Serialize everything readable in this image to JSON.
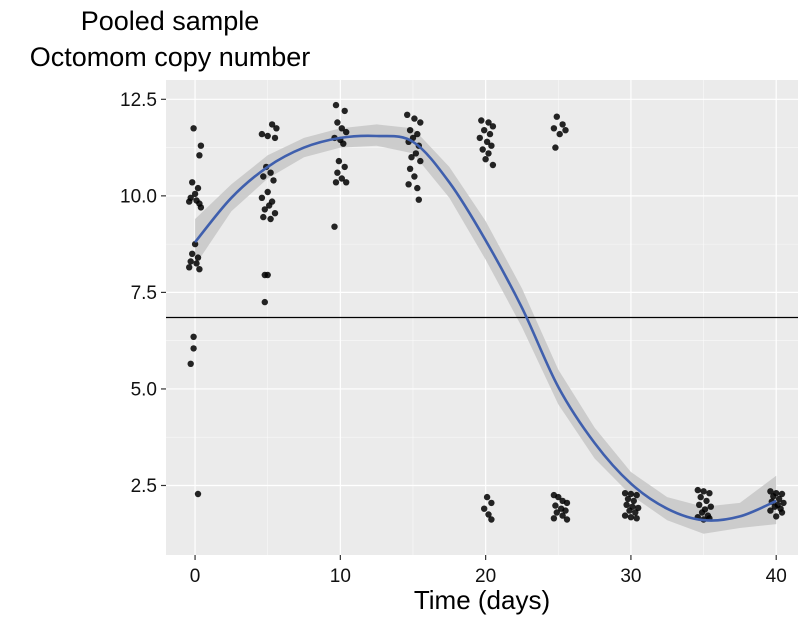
{
  "chart_data": {
    "type": "scatter",
    "title_line1": "Pooled sample",
    "title_line2": "Octomom copy number",
    "xlabel": "Time (days)",
    "ylabel": "",
    "xlim": [
      -2,
      41.5
    ],
    "ylim": [
      0.7,
      13.0
    ],
    "x_ticks": [
      "0",
      "10",
      "20",
      "30",
      "40"
    ],
    "y_ticks": [
      "2.5",
      "5.0",
      "7.5",
      "10.0",
      "12.5"
    ],
    "x_tick_values": [
      0,
      10,
      20,
      30,
      40
    ],
    "y_tick_values": [
      2.5,
      5.0,
      7.5,
      10.0,
      12.5
    ],
    "grid": true,
    "hline": 6.85,
    "colors": {
      "panel": "#ebebeb",
      "grid": "#ffffff",
      "points": "#000000",
      "smooth": "#3f5fad",
      "ribbon": "#c9c9c9",
      "hline": "#000000"
    },
    "points": [
      {
        "x": -0.1,
        "y": 11.75
      },
      {
        "x": 0.4,
        "y": 11.3
      },
      {
        "x": 0.3,
        "y": 11.05
      },
      {
        "x": -0.2,
        "y": 10.35
      },
      {
        "x": 0.2,
        "y": 10.2
      },
      {
        "x": 0.0,
        "y": 10.05
      },
      {
        "x": -0.3,
        "y": 9.95
      },
      {
        "x": 0.1,
        "y": 9.88
      },
      {
        "x": -0.4,
        "y": 9.85
      },
      {
        "x": 0.3,
        "y": 9.8
      },
      {
        "x": 0.4,
        "y": 9.7
      },
      {
        "x": 0.0,
        "y": 8.75
      },
      {
        "x": -0.2,
        "y": 8.5
      },
      {
        "x": 0.2,
        "y": 8.4
      },
      {
        "x": -0.3,
        "y": 8.3
      },
      {
        "x": 0.1,
        "y": 8.25
      },
      {
        "x": -0.4,
        "y": 8.15
      },
      {
        "x": 0.3,
        "y": 8.1
      },
      {
        "x": -0.1,
        "y": 6.35
      },
      {
        "x": -0.1,
        "y": 6.05
      },
      {
        "x": -0.3,
        "y": 5.65
      },
      {
        "x": 0.2,
        "y": 2.28
      },
      {
        "x": 4.6,
        "y": 11.6
      },
      {
        "x": 5.0,
        "y": 11.55
      },
      {
        "x": 5.3,
        "y": 11.85
      },
      {
        "x": 5.6,
        "y": 11.75
      },
      {
        "x": 5.5,
        "y": 11.5
      },
      {
        "x": 4.9,
        "y": 10.75
      },
      {
        "x": 5.2,
        "y": 10.6
      },
      {
        "x": 4.7,
        "y": 10.5
      },
      {
        "x": 5.4,
        "y": 10.4
      },
      {
        "x": 5.0,
        "y": 10.1
      },
      {
        "x": 4.6,
        "y": 9.95
      },
      {
        "x": 5.3,
        "y": 9.85
      },
      {
        "x": 5.1,
        "y": 9.75
      },
      {
        "x": 4.8,
        "y": 9.65
      },
      {
        "x": 5.5,
        "y": 9.55
      },
      {
        "x": 4.7,
        "y": 9.45
      },
      {
        "x": 5.2,
        "y": 9.4
      },
      {
        "x": 4.8,
        "y": 7.95
      },
      {
        "x": 5.0,
        "y": 7.95
      },
      {
        "x": 4.8,
        "y": 7.25
      },
      {
        "x": 9.7,
        "y": 12.35
      },
      {
        "x": 10.3,
        "y": 12.2
      },
      {
        "x": 9.8,
        "y": 11.9
      },
      {
        "x": 10.1,
        "y": 11.75
      },
      {
        "x": 10.4,
        "y": 11.65
      },
      {
        "x": 9.6,
        "y": 11.5
      },
      {
        "x": 10.0,
        "y": 11.45
      },
      {
        "x": 10.2,
        "y": 11.35
      },
      {
        "x": 9.9,
        "y": 10.9
      },
      {
        "x": 10.3,
        "y": 10.75
      },
      {
        "x": 9.8,
        "y": 10.6
      },
      {
        "x": 10.1,
        "y": 10.45
      },
      {
        "x": 9.7,
        "y": 10.35
      },
      {
        "x": 10.4,
        "y": 10.35
      },
      {
        "x": 9.6,
        "y": 9.2
      },
      {
        "x": 14.6,
        "y": 12.1
      },
      {
        "x": 15.1,
        "y": 12.0
      },
      {
        "x": 15.5,
        "y": 11.9
      },
      {
        "x": 14.8,
        "y": 11.7
      },
      {
        "x": 15.3,
        "y": 11.6
      },
      {
        "x": 15.0,
        "y": 11.5
      },
      {
        "x": 14.7,
        "y": 11.4
      },
      {
        "x": 15.4,
        "y": 11.3
      },
      {
        "x": 15.2,
        "y": 11.1
      },
      {
        "x": 14.9,
        "y": 11.0
      },
      {
        "x": 15.5,
        "y": 10.9
      },
      {
        "x": 14.8,
        "y": 10.7
      },
      {
        "x": 15.1,
        "y": 10.5
      },
      {
        "x": 14.7,
        "y": 10.3
      },
      {
        "x": 15.3,
        "y": 10.2
      },
      {
        "x": 15.4,
        "y": 9.9
      },
      {
        "x": 19.7,
        "y": 11.95
      },
      {
        "x": 20.2,
        "y": 11.9
      },
      {
        "x": 20.5,
        "y": 11.8
      },
      {
        "x": 19.9,
        "y": 11.7
      },
      {
        "x": 20.3,
        "y": 11.6
      },
      {
        "x": 19.6,
        "y": 11.5
      },
      {
        "x": 20.1,
        "y": 11.4
      },
      {
        "x": 20.4,
        "y": 11.3
      },
      {
        "x": 19.8,
        "y": 11.2
      },
      {
        "x": 20.2,
        "y": 11.1
      },
      {
        "x": 20.0,
        "y": 10.95
      },
      {
        "x": 20.5,
        "y": 10.8
      },
      {
        "x": 20.1,
        "y": 2.2
      },
      {
        "x": 20.4,
        "y": 2.05
      },
      {
        "x": 19.9,
        "y": 1.9
      },
      {
        "x": 20.2,
        "y": 1.75
      },
      {
        "x": 20.4,
        "y": 1.62
      },
      {
        "x": 24.9,
        "y": 12.05
      },
      {
        "x": 25.3,
        "y": 11.85
      },
      {
        "x": 24.7,
        "y": 11.75
      },
      {
        "x": 25.5,
        "y": 11.7
      },
      {
        "x": 25.1,
        "y": 11.6
      },
      {
        "x": 24.8,
        "y": 11.25
      },
      {
        "x": 24.7,
        "y": 2.25
      },
      {
        "x": 25.0,
        "y": 2.2
      },
      {
        "x": 25.3,
        "y": 2.1
      },
      {
        "x": 25.6,
        "y": 2.05
      },
      {
        "x": 24.8,
        "y": 1.98
      },
      {
        "x": 25.2,
        "y": 1.9
      },
      {
        "x": 25.5,
        "y": 1.85
      },
      {
        "x": 24.9,
        "y": 1.8
      },
      {
        "x": 25.3,
        "y": 1.72
      },
      {
        "x": 24.7,
        "y": 1.65
      },
      {
        "x": 25.6,
        "y": 1.62
      },
      {
        "x": 29.6,
        "y": 2.3
      },
      {
        "x": 30.0,
        "y": 2.28
      },
      {
        "x": 30.4,
        "y": 2.25
      },
      {
        "x": 29.8,
        "y": 2.15
      },
      {
        "x": 30.2,
        "y": 2.1
      },
      {
        "x": 29.7,
        "y": 2.0
      },
      {
        "x": 30.1,
        "y": 1.95
      },
      {
        "x": 30.5,
        "y": 1.92
      },
      {
        "x": 29.9,
        "y": 1.85
      },
      {
        "x": 30.3,
        "y": 1.8
      },
      {
        "x": 29.6,
        "y": 1.72
      },
      {
        "x": 30.0,
        "y": 1.68
      },
      {
        "x": 30.4,
        "y": 1.65
      },
      {
        "x": 34.6,
        "y": 2.38
      },
      {
        "x": 35.0,
        "y": 2.35
      },
      {
        "x": 35.4,
        "y": 2.3
      },
      {
        "x": 34.8,
        "y": 2.2
      },
      {
        "x": 35.2,
        "y": 2.1
      },
      {
        "x": 34.7,
        "y": 2.0
      },
      {
        "x": 35.5,
        "y": 1.95
      },
      {
        "x": 35.1,
        "y": 1.88
      },
      {
        "x": 34.9,
        "y": 1.8
      },
      {
        "x": 35.3,
        "y": 1.72
      },
      {
        "x": 34.6,
        "y": 1.68
      },
      {
        "x": 35.4,
        "y": 1.65
      },
      {
        "x": 35.0,
        "y": 1.62
      },
      {
        "x": 39.6,
        "y": 2.35
      },
      {
        "x": 40.0,
        "y": 2.3
      },
      {
        "x": 40.4,
        "y": 2.28
      },
      {
        "x": 39.8,
        "y": 2.22
      },
      {
        "x": 40.2,
        "y": 2.15
      },
      {
        "x": 39.7,
        "y": 2.08
      },
      {
        "x": 40.5,
        "y": 2.05
      },
      {
        "x": 40.1,
        "y": 2.0
      },
      {
        "x": 39.9,
        "y": 1.95
      },
      {
        "x": 40.3,
        "y": 1.9
      },
      {
        "x": 39.6,
        "y": 1.85
      },
      {
        "x": 40.4,
        "y": 1.8
      },
      {
        "x": 40.0,
        "y": 1.7
      }
    ],
    "smooth": {
      "x": [
        0,
        2.5,
        5,
        7.5,
        10,
        12.5,
        15,
        17.5,
        20,
        22.5,
        25,
        27.5,
        30,
        32.5,
        35,
        37.5,
        40
      ],
      "y": [
        8.8,
        9.95,
        10.75,
        11.25,
        11.5,
        11.55,
        11.4,
        10.35,
        8.85,
        7.1,
        5.05,
        3.6,
        2.55,
        1.9,
        1.6,
        1.7,
        2.1
      ],
      "ymin": [
        8.2,
        9.6,
        10.45,
        11.0,
        11.25,
        11.3,
        11.1,
        9.95,
        8.35,
        6.6,
        4.6,
        3.2,
        2.25,
        1.6,
        1.25,
        1.4,
        1.5
      ],
      "ymax": [
        9.4,
        10.3,
        11.05,
        11.5,
        11.75,
        11.85,
        11.75,
        10.75,
        9.35,
        7.6,
        5.5,
        4.0,
        2.85,
        2.2,
        1.95,
        2.05,
        2.75
      ]
    }
  }
}
